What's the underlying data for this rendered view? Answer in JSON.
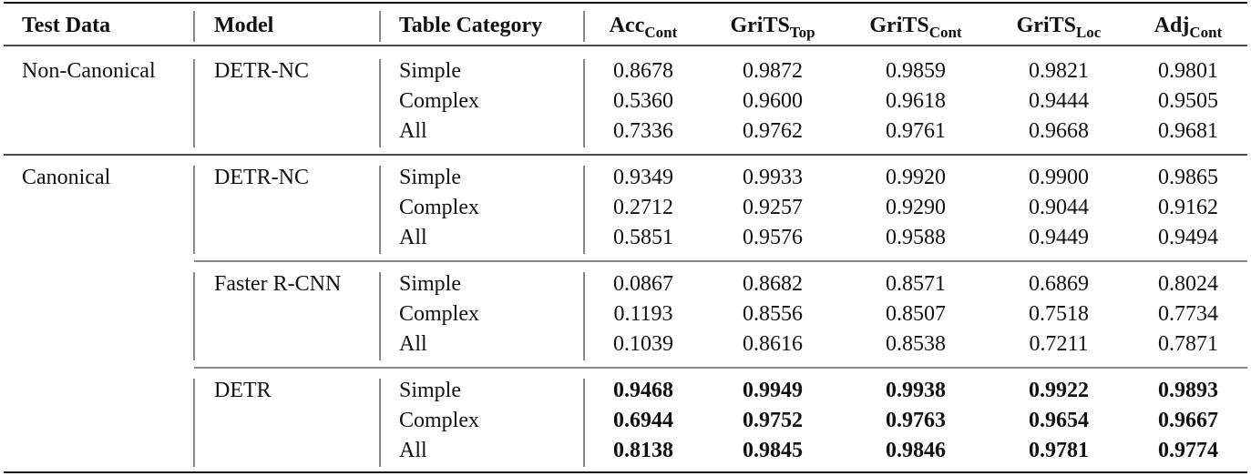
{
  "table": {
    "header": [
      {
        "main": "Test Data"
      },
      {
        "main": "Model"
      },
      {
        "main": "Table Category"
      },
      {
        "main": "Acc",
        "sub": "Cont"
      },
      {
        "main": "GriTS",
        "sub": "Top"
      },
      {
        "main": "GriTS",
        "sub": "Cont"
      },
      {
        "main": "GriTS",
        "sub": "Loc"
      },
      {
        "main": "Adj",
        "sub": "Cont"
      }
    ],
    "groups": [
      {
        "test_data": "Non-Canonical",
        "models": [
          {
            "model": "DETR-NC",
            "bold": false,
            "rows": [
              {
                "category": "Simple",
                "values": [
                  "0.8678",
                  "0.9872",
                  "0.9859",
                  "0.9821",
                  "0.9801"
                ]
              },
              {
                "category": "Complex",
                "values": [
                  "0.5360",
                  "0.9600",
                  "0.9618",
                  "0.9444",
                  "0.9505"
                ]
              },
              {
                "category": "All",
                "values": [
                  "0.7336",
                  "0.9762",
                  "0.9761",
                  "0.9668",
                  "0.9681"
                ]
              }
            ]
          }
        ]
      },
      {
        "test_data": "Canonical",
        "models": [
          {
            "model": "DETR-NC",
            "bold": false,
            "rows": [
              {
                "category": "Simple",
                "values": [
                  "0.9349",
                  "0.9933",
                  "0.9920",
                  "0.9900",
                  "0.9865"
                ]
              },
              {
                "category": "Complex",
                "values": [
                  "0.2712",
                  "0.9257",
                  "0.9290",
                  "0.9044",
                  "0.9162"
                ]
              },
              {
                "category": "All",
                "values": [
                  "0.5851",
                  "0.9576",
                  "0.9588",
                  "0.9449",
                  "0.9494"
                ]
              }
            ]
          },
          {
            "model": "Faster R-CNN",
            "bold": false,
            "rows": [
              {
                "category": "Simple",
                "values": [
                  "0.0867",
                  "0.8682",
                  "0.8571",
                  "0.6869",
                  "0.8024"
                ]
              },
              {
                "category": "Complex",
                "values": [
                  "0.1193",
                  "0.8556",
                  "0.8507",
                  "0.7518",
                  "0.7734"
                ]
              },
              {
                "category": "All",
                "values": [
                  "0.1039",
                  "0.8616",
                  "0.8538",
                  "0.7211",
                  "0.7871"
                ]
              }
            ]
          },
          {
            "model": "DETR",
            "bold": true,
            "rows": [
              {
                "category": "Simple",
                "values": [
                  "0.9468",
                  "0.9949",
                  "0.9938",
                  "0.9922",
                  "0.9893"
                ]
              },
              {
                "category": "Complex",
                "values": [
                  "0.6944",
                  "0.9752",
                  "0.9763",
                  "0.9654",
                  "0.9667"
                ]
              },
              {
                "category": "All",
                "values": [
                  "0.8138",
                  "0.9845",
                  "0.9846",
                  "0.9781",
                  "0.9774"
                ]
              }
            ]
          }
        ]
      }
    ]
  }
}
